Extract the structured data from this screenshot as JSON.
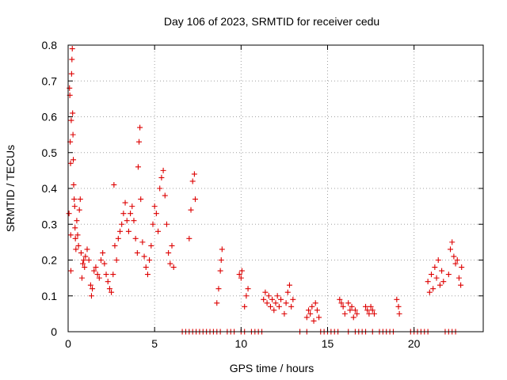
{
  "chart_data": {
    "type": "scatter",
    "title": "Day 106 of 2023, SRMTID for receiver cedu",
    "xlabel": "GPS time / hours",
    "ylabel": "SRMTID / TECUs",
    "xlim": [
      0,
      24
    ],
    "ylim": [
      0,
      0.8
    ],
    "xticks": [
      0,
      5,
      10,
      15,
      20
    ],
    "yticks": [
      0,
      0.1,
      0.2,
      0.3,
      0.4,
      0.5,
      0.6,
      0.7,
      0.8
    ],
    "grid": true,
    "marker": "+",
    "color": "#dd0000",
    "series": [
      {
        "name": "SRMTID",
        "points": [
          [
            0.05,
            0.33
          ],
          [
            0.08,
            0.68
          ],
          [
            0.1,
            0.66
          ],
          [
            0.12,
            0.53
          ],
          [
            0.14,
            0.47
          ],
          [
            0.15,
            0.27
          ],
          [
            0.16,
            0.17
          ],
          [
            0.18,
            0.59
          ],
          [
            0.2,
            0.72
          ],
          [
            0.22,
            0.76
          ],
          [
            0.24,
            0.79
          ],
          [
            0.26,
            0.61
          ],
          [
            0.28,
            0.55
          ],
          [
            0.3,
            0.48
          ],
          [
            0.32,
            0.41
          ],
          [
            0.35,
            0.37
          ],
          [
            0.38,
            0.35
          ],
          [
            0.4,
            0.29
          ],
          [
            0.42,
            0.26
          ],
          [
            0.45,
            0.23
          ],
          [
            0.5,
            0.31
          ],
          [
            0.55,
            0.27
          ],
          [
            0.6,
            0.24
          ],
          [
            0.65,
            0.34
          ],
          [
            0.7,
            0.37
          ],
          [
            0.75,
            0.22
          ],
          [
            0.8,
            0.15
          ],
          [
            0.85,
            0.19
          ],
          [
            0.9,
            0.2
          ],
          [
            0.95,
            0.18
          ],
          [
            1.0,
            0.21
          ],
          [
            1.1,
            0.23
          ],
          [
            1.2,
            0.2
          ],
          [
            1.3,
            0.13
          ],
          [
            1.35,
            0.1
          ],
          [
            1.4,
            0.12
          ],
          [
            1.5,
            0.17
          ],
          [
            1.6,
            0.18
          ],
          [
            1.7,
            0.16
          ],
          [
            1.8,
            0.15
          ],
          [
            1.9,
            0.2
          ],
          [
            2.0,
            0.22
          ],
          [
            2.1,
            0.19
          ],
          [
            2.2,
            0.16
          ],
          [
            2.3,
            0.14
          ],
          [
            2.4,
            0.12
          ],
          [
            2.5,
            0.11
          ],
          [
            2.6,
            0.16
          ],
          [
            2.65,
            0.41
          ],
          [
            2.7,
            0.24
          ],
          [
            2.8,
            0.2
          ],
          [
            2.9,
            0.26
          ],
          [
            3.0,
            0.28
          ],
          [
            3.1,
            0.3
          ],
          [
            3.2,
            0.33
          ],
          [
            3.3,
            0.36
          ],
          [
            3.4,
            0.31
          ],
          [
            3.5,
            0.28
          ],
          [
            3.6,
            0.33
          ],
          [
            3.7,
            0.35
          ],
          [
            3.8,
            0.31
          ],
          [
            3.9,
            0.26
          ],
          [
            4.0,
            0.22
          ],
          [
            4.05,
            0.46
          ],
          [
            4.1,
            0.53
          ],
          [
            4.15,
            0.57
          ],
          [
            4.2,
            0.37
          ],
          [
            4.3,
            0.25
          ],
          [
            4.4,
            0.21
          ],
          [
            4.5,
            0.18
          ],
          [
            4.6,
            0.16
          ],
          [
            4.7,
            0.2
          ],
          [
            4.8,
            0.24
          ],
          [
            4.9,
            0.3
          ],
          [
            5.0,
            0.35
          ],
          [
            5.1,
            0.33
          ],
          [
            5.2,
            0.28
          ],
          [
            5.3,
            0.4
          ],
          [
            5.4,
            0.43
          ],
          [
            5.5,
            0.45
          ],
          [
            5.6,
            0.38
          ],
          [
            5.7,
            0.3
          ],
          [
            5.8,
            0.22
          ],
          [
            5.9,
            0.19
          ],
          [
            6.0,
            0.24
          ],
          [
            6.1,
            0.18
          ],
          [
            7.0,
            0.26
          ],
          [
            7.1,
            0.34
          ],
          [
            7.2,
            0.42
          ],
          [
            7.3,
            0.44
          ],
          [
            7.35,
            0.37
          ],
          [
            8.6,
            0.08
          ],
          [
            8.7,
            0.12
          ],
          [
            8.8,
            0.17
          ],
          [
            8.85,
            0.2
          ],
          [
            8.9,
            0.23
          ],
          [
            9.9,
            0.16
          ],
          [
            10.0,
            0.15
          ],
          [
            10.05,
            0.17
          ],
          [
            10.2,
            0.07
          ],
          [
            10.3,
            0.1
          ],
          [
            10.4,
            0.12
          ],
          [
            11.3,
            0.09
          ],
          [
            11.4,
            0.11
          ],
          [
            11.5,
            0.08
          ],
          [
            11.6,
            0.1
          ],
          [
            11.7,
            0.07
          ],
          [
            11.8,
            0.09
          ],
          [
            11.9,
            0.06
          ],
          [
            12.0,
            0.08
          ],
          [
            12.1,
            0.1
          ],
          [
            12.2,
            0.07
          ],
          [
            12.3,
            0.09
          ],
          [
            12.5,
            0.05
          ],
          [
            12.6,
            0.08
          ],
          [
            12.7,
            0.11
          ],
          [
            12.8,
            0.13
          ],
          [
            12.9,
            0.07
          ],
          [
            13.0,
            0.09
          ],
          [
            13.8,
            0.04
          ],
          [
            13.9,
            0.06
          ],
          [
            14.0,
            0.05
          ],
          [
            14.1,
            0.07
          ],
          [
            14.2,
            0.03
          ],
          [
            14.3,
            0.08
          ],
          [
            14.4,
            0.06
          ],
          [
            14.5,
            0.04
          ],
          [
            15.7,
            0.09
          ],
          [
            15.8,
            0.08
          ],
          [
            15.9,
            0.07
          ],
          [
            16.0,
            0.05
          ],
          [
            16.2,
            0.08
          ],
          [
            16.3,
            0.06
          ],
          [
            16.4,
            0.07
          ],
          [
            16.5,
            0.04
          ],
          [
            16.6,
            0.06
          ],
          [
            16.7,
            0.05
          ],
          [
            17.2,
            0.07
          ],
          [
            17.3,
            0.06
          ],
          [
            17.4,
            0.05
          ],
          [
            17.5,
            0.07
          ],
          [
            17.6,
            0.06
          ],
          [
            17.7,
            0.05
          ],
          [
            19.0,
            0.09
          ],
          [
            19.1,
            0.07
          ],
          [
            19.15,
            0.05
          ],
          [
            20.8,
            0.14
          ],
          [
            20.9,
            0.11
          ],
          [
            21.0,
            0.16
          ],
          [
            21.1,
            0.12
          ],
          [
            21.2,
            0.18
          ],
          [
            21.3,
            0.15
          ],
          [
            21.4,
            0.2
          ],
          [
            21.5,
            0.13
          ],
          [
            21.6,
            0.17
          ],
          [
            21.7,
            0.14
          ],
          [
            22.0,
            0.16
          ],
          [
            22.1,
            0.23
          ],
          [
            22.2,
            0.25
          ],
          [
            22.3,
            0.21
          ],
          [
            22.4,
            0.19
          ],
          [
            22.5,
            0.2
          ],
          [
            22.6,
            0.15
          ],
          [
            22.7,
            0.13
          ],
          [
            22.75,
            0.18
          ],
          [
            6.6,
            0
          ],
          [
            6.8,
            0
          ],
          [
            7.0,
            0
          ],
          [
            7.2,
            0
          ],
          [
            7.4,
            0
          ],
          [
            7.6,
            0
          ],
          [
            7.8,
            0
          ],
          [
            8.0,
            0
          ],
          [
            8.2,
            0
          ],
          [
            8.4,
            0
          ],
          [
            8.6,
            0
          ],
          [
            8.8,
            0
          ],
          [
            9.2,
            0
          ],
          [
            9.4,
            0
          ],
          [
            9.6,
            0
          ],
          [
            10.0,
            0
          ],
          [
            10.2,
            0
          ],
          [
            10.6,
            0
          ],
          [
            10.8,
            0
          ],
          [
            11.0,
            0
          ],
          [
            11.2,
            0
          ],
          [
            13.4,
            0
          ],
          [
            13.8,
            0
          ],
          [
            14.6,
            0
          ],
          [
            14.8,
            0
          ],
          [
            15.0,
            0
          ],
          [
            15.2,
            0
          ],
          [
            15.4,
            0
          ],
          [
            15.6,
            0
          ],
          [
            16.2,
            0
          ],
          [
            16.6,
            0
          ],
          [
            16.8,
            0
          ],
          [
            17.0,
            0
          ],
          [
            17.2,
            0
          ],
          [
            17.6,
            0
          ],
          [
            18.0,
            0
          ],
          [
            18.2,
            0
          ],
          [
            18.4,
            0
          ],
          [
            18.6,
            0
          ],
          [
            18.8,
            0
          ],
          [
            19.8,
            0
          ],
          [
            20.0,
            0
          ],
          [
            20.2,
            0
          ],
          [
            20.4,
            0
          ],
          [
            20.6,
            0
          ],
          [
            20.8,
            0
          ],
          [
            21.8,
            0
          ],
          [
            22.0,
            0
          ],
          [
            22.2,
            0
          ],
          [
            22.4,
            0
          ]
        ]
      }
    ]
  }
}
